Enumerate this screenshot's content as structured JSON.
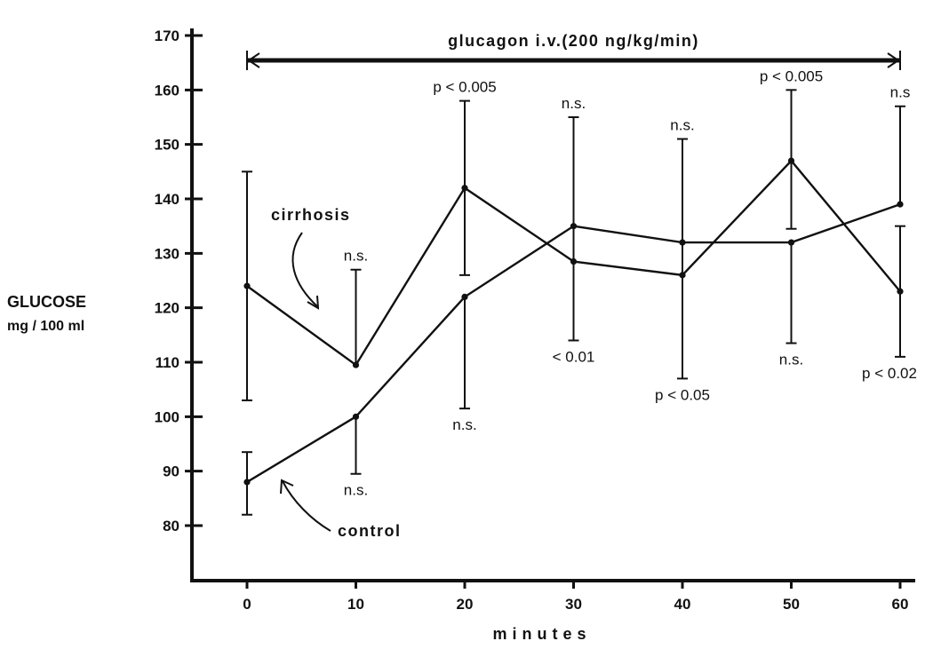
{
  "chart_data": {
    "type": "line",
    "xlabel": "minutes",
    "ylabel_line1": "GLUCOSE",
    "ylabel_line2": "mg / 100 ml",
    "x": [
      0,
      10,
      20,
      30,
      40,
      50,
      60
    ],
    "xlim": [
      0,
      60
    ],
    "ylim": [
      80,
      170
    ],
    "y_ticks": [
      80,
      90,
      100,
      110,
      120,
      130,
      140,
      150,
      160,
      170
    ],
    "x_ticks": [
      0,
      10,
      20,
      30,
      40,
      50,
      60
    ],
    "grid": false,
    "treatment_label": "glucagon i.v.(200 ng/kg/min)",
    "treatment_range": [
      0,
      60
    ],
    "series": [
      {
        "name": "cirrhosis",
        "values": [
          124,
          109.5,
          142,
          128.5,
          126,
          147,
          123
        ],
        "err_low": [
          103,
          109.5,
          126,
          114,
          107,
          134.5,
          111
        ],
        "err_high": [
          145,
          127,
          158,
          155,
          151,
          160,
          135
        ]
      },
      {
        "name": "control",
        "values": [
          88,
          100,
          122,
          135,
          132,
          132,
          139
        ],
        "err_low": [
          82,
          89.5,
          101.5,
          135,
          132,
          113.5,
          139
        ],
        "err_high": [
          93.5,
          100,
          122,
          135,
          132,
          132,
          157
        ]
      }
    ],
    "annotations_top": [
      {
        "x": 10,
        "text": "n.s."
      },
      {
        "x": 20,
        "text": "p < 0.005"
      },
      {
        "x": 30,
        "text": "n.s."
      },
      {
        "x": 40,
        "text": "n.s."
      },
      {
        "x": 50,
        "text": "p < 0.005"
      },
      {
        "x": 60,
        "text": "n.s"
      }
    ],
    "annotations_bottom": [
      {
        "x": 10,
        "text": "n.s."
      },
      {
        "x": 20,
        "text": "n.s."
      },
      {
        "x": 30,
        "text": "< 0.01"
      },
      {
        "x": 40,
        "text": "p < 0.05"
      },
      {
        "x": 50,
        "text": "n.s."
      },
      {
        "x": 60,
        "text": "p < 0.02"
      }
    ]
  }
}
